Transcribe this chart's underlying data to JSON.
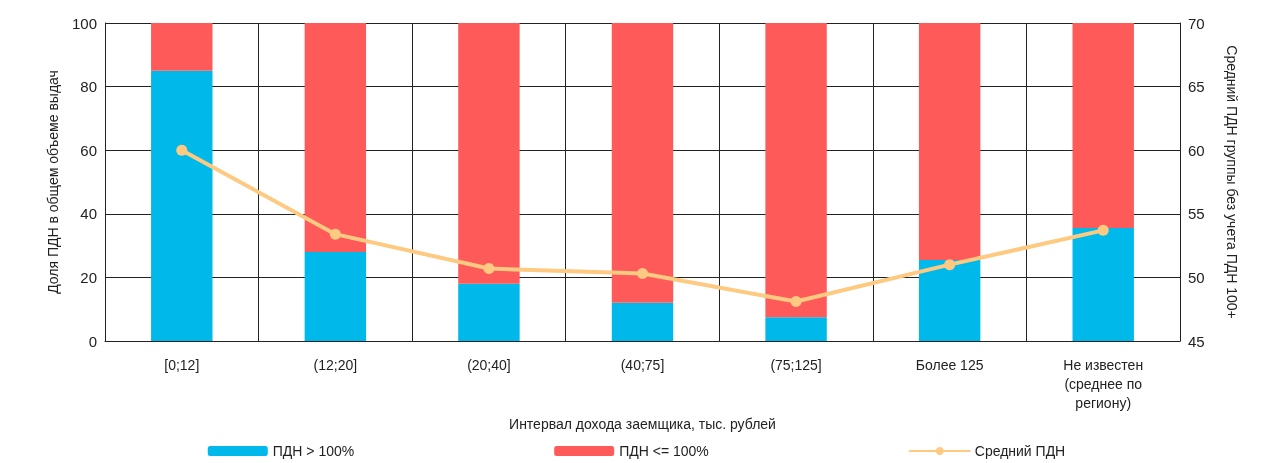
{
  "chart_data": {
    "type": "bar",
    "stacked": true,
    "xlabel": "Интервал дохода заемщика, тыс. рублей",
    "ylabel": "Доля ПДН в общем объеме выдач",
    "y2label": "Средний ПДН группы без учета ПДН 100+",
    "categories": [
      "[0;12]",
      "(12;20]",
      "(20;40]",
      "(40;75]",
      "(75;125]",
      "Более 125",
      "Не известен (среднее по региону)"
    ],
    "series": [
      {
        "name": "ПДН > 100%",
        "color": "#00b9eb",
        "values": [
          85,
          28,
          18,
          12,
          7.5,
          25.5,
          35.5
        ]
      },
      {
        "name": "ПДН <= 100%",
        "color": "#ff5a5a",
        "values": [
          15,
          72,
          82,
          88,
          92.5,
          74.5,
          64.5
        ]
      },
      {
        "name": "Средний ПДН",
        "type": "line",
        "axis": "y2",
        "color": "#fec981",
        "values": [
          60,
          53.4,
          50.7,
          50.3,
          48.1,
          51,
          53.7
        ]
      }
    ],
    "ylim": [
      0,
      100
    ],
    "yticks": [
      0,
      20,
      40,
      60,
      80,
      100
    ],
    "y2lim": [
      45,
      70
    ],
    "y2ticks": [
      45,
      50,
      55,
      60,
      65,
      70
    ],
    "grid": true,
    "legend": "bottom",
    "marker": "circle",
    "line_style": "solid"
  }
}
